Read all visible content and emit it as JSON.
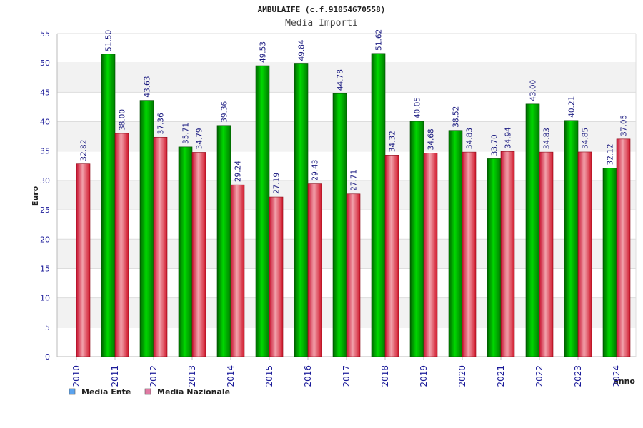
{
  "chart_data": {
    "type": "bar",
    "title": "AMBULAIFE (c.f.91054670558)",
    "subtitle": "Media Importi",
    "ylabel": "Euro",
    "xlabel": "anno",
    "ylim": [
      0,
      55
    ],
    "yticks": [
      0,
      5,
      10,
      15,
      20,
      25,
      30,
      35,
      40,
      45,
      50,
      55
    ],
    "grid": true,
    "legend_position": "bottom-left",
    "categories": [
      "2010",
      "2011",
      "2012",
      "2013",
      "2014",
      "2015",
      "2016",
      "2017",
      "2018",
      "2019",
      "2020",
      "2021",
      "2022",
      "2023",
      "2024"
    ],
    "series": [
      {
        "name": "Media Ente",
        "color": "#00b000",
        "legend_color": "#5ba3ee",
        "values": [
          null,
          51.5,
          43.63,
          35.71,
          39.36,
          49.53,
          49.84,
          44.78,
          51.62,
          40.05,
          38.52,
          33.7,
          43.0,
          40.21,
          32.12
        ],
        "labels": [
          "",
          "51.50",
          "43.63",
          "35.71",
          "39.36",
          "49.53",
          "49.84",
          "44.78",
          "51.62",
          "40.05",
          "38.52",
          "33.70",
          "43.00",
          "40.21",
          "32.12"
        ]
      },
      {
        "name": "Media Nazionale",
        "color": "#e8303c",
        "legend_color": "#e07aa3",
        "values": [
          32.82,
          38.0,
          37.36,
          34.79,
          29.24,
          27.19,
          29.43,
          27.71,
          34.32,
          34.68,
          34.83,
          34.94,
          34.83,
          34.85,
          37.05
        ],
        "labels": [
          "32.82",
          "38.00",
          "37.36",
          "34.79",
          "29.24",
          "27.19",
          "29.43",
          "27.71",
          "34.32",
          "34.68",
          "34.83",
          "34.94",
          "34.83",
          "34.85",
          "37.05"
        ]
      }
    ]
  }
}
